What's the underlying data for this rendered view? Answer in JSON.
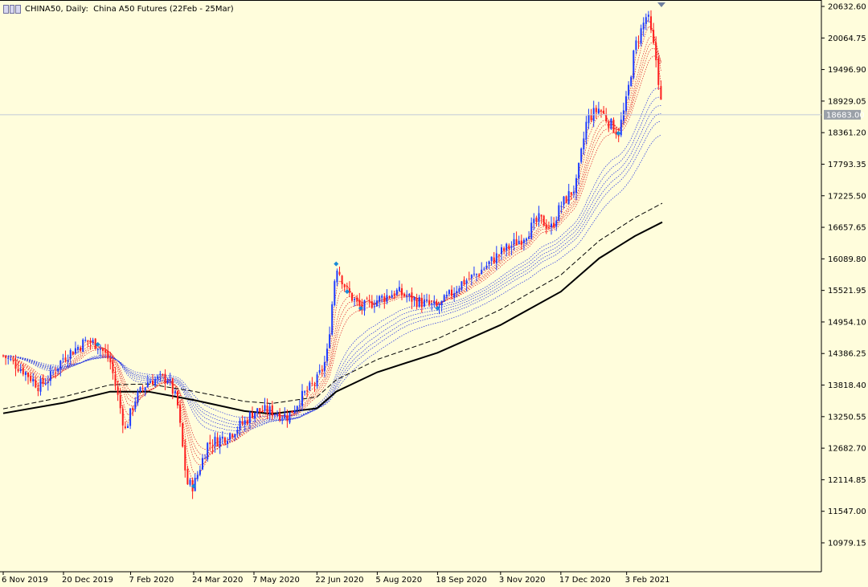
{
  "window": {
    "symbol": "CHINA50",
    "timeframe": "Daily",
    "separator": ":",
    "description": "China A50 Futures (22Feb - 25Mar)",
    "bid_badge": "18683.00"
  },
  "colors": {
    "background": "#fffddc",
    "bull_candle": "#1e3cff",
    "bear_candle": "#ff1e1e",
    "ema_fast": "#e02020",
    "ema_slow": "#2030e0",
    "long_ma": "#000000",
    "bid_line": "#c0c8d8"
  },
  "chart_data": {
    "type": "candlestick",
    "title": "CHINA50, Daily: China A50 Futures (22Feb - 25Mar)",
    "y_axis": {
      "ticks": [
        20632.6,
        20064.75,
        19496.9,
        18929.05,
        18361.2,
        17793.35,
        17225.5,
        16657.65,
        16089.8,
        15521.95,
        14954.1,
        14386.25,
        13818.4,
        13250.55,
        12682.7,
        12114.85,
        11547.0,
        10979.15
      ],
      "labels": [
        "20632.60",
        "20064.75",
        "19496.90",
        "18929.05",
        "18361.20",
        "17793.35",
        "17225.50",
        "16657.65",
        "16089.80",
        "15521.95",
        "14954.10",
        "14386.25",
        "13818.40",
        "13250.55",
        "12682.70",
        "12114.85",
        "11547.00",
        "10979.15"
      ],
      "range": [
        10750,
        20700
      ]
    },
    "x_axis": {
      "labels": [
        "6 Nov 2019",
        "20 Dec 2019",
        "7 Feb 2020",
        "24 Mar 2020",
        "7 May 2020",
        "22 Jun 2020",
        "5 Aug 2020",
        "18 Sep 2020",
        "3 Nov 2020",
        "17 Dec 2020",
        "3 Feb 2021"
      ]
    },
    "current_price": 18683.0,
    "close_path": [
      {
        "date": "2019-11-06",
        "close": 14350
      },
      {
        "date": "2019-11-20",
        "close": 14100
      },
      {
        "date": "2019-12-02",
        "close": 13800
      },
      {
        "date": "2019-12-10",
        "close": 13950
      },
      {
        "date": "2019-12-20",
        "close": 14320
      },
      {
        "date": "2020-01-06",
        "close": 14620
      },
      {
        "date": "2020-01-14",
        "close": 14550
      },
      {
        "date": "2020-01-23",
        "close": 14250
      },
      {
        "date": "2020-02-03",
        "close": 13000
      },
      {
        "date": "2020-02-10",
        "close": 13550
      },
      {
        "date": "2020-02-20",
        "close": 13900
      },
      {
        "date": "2020-03-05",
        "close": 13950
      },
      {
        "date": "2020-03-12",
        "close": 13500
      },
      {
        "date": "2020-03-19",
        "close": 12050
      },
      {
        "date": "2020-03-24",
        "close": 12000
      },
      {
        "date": "2020-04-03",
        "close": 12750
      },
      {
        "date": "2020-04-17",
        "close": 12900
      },
      {
        "date": "2020-04-30",
        "close": 13150
      },
      {
        "date": "2020-05-07",
        "close": 13350
      },
      {
        "date": "2020-05-20",
        "close": 13350
      },
      {
        "date": "2020-06-01",
        "close": 13250
      },
      {
        "date": "2020-06-09",
        "close": 13550
      },
      {
        "date": "2020-06-22",
        "close": 13900
      },
      {
        "date": "2020-06-29",
        "close": 14300
      },
      {
        "date": "2020-07-06",
        "close": 16000
      },
      {
        "date": "2020-07-14",
        "close": 15500
      },
      {
        "date": "2020-07-24",
        "close": 15200
      },
      {
        "date": "2020-08-05",
        "close": 15350
      },
      {
        "date": "2020-08-19",
        "close": 15500
      },
      {
        "date": "2020-09-01",
        "close": 15350
      },
      {
        "date": "2020-09-18",
        "close": 15200
      },
      {
        "date": "2020-10-05",
        "close": 15650
      },
      {
        "date": "2020-10-16",
        "close": 15800
      },
      {
        "date": "2020-11-03",
        "close": 16200
      },
      {
        "date": "2020-11-18",
        "close": 16450
      },
      {
        "date": "2020-12-01",
        "close": 16800
      },
      {
        "date": "2020-12-10",
        "close": 16650
      },
      {
        "date": "2020-12-17",
        "close": 17050
      },
      {
        "date": "2020-12-28",
        "close": 17400
      },
      {
        "date": "2021-01-05",
        "close": 18600
      },
      {
        "date": "2021-01-14",
        "close": 18800
      },
      {
        "date": "2021-01-21",
        "close": 18550
      },
      {
        "date": "2021-01-28",
        "close": 18350
      },
      {
        "date": "2021-02-03",
        "close": 18950
      },
      {
        "date": "2021-02-09",
        "close": 19900
      },
      {
        "date": "2021-02-18",
        "close": 20500
      },
      {
        "date": "2021-02-25",
        "close": 19600
      },
      {
        "date": "2021-03-01",
        "close": 18683
      }
    ],
    "long_ma": [
      {
        "date": "2019-11-06",
        "value": 13310
      },
      {
        "date": "2019-12-20",
        "value": 13500
      },
      {
        "date": "2020-01-23",
        "value": 13700
      },
      {
        "date": "2020-02-20",
        "value": 13700
      },
      {
        "date": "2020-03-24",
        "value": 13550
      },
      {
        "date": "2020-04-30",
        "value": 13350
      },
      {
        "date": "2020-05-20",
        "value": 13300
      },
      {
        "date": "2020-06-22",
        "value": 13400
      },
      {
        "date": "2020-07-06",
        "value": 13700
      },
      {
        "date": "2020-08-05",
        "value": 14050
      },
      {
        "date": "2020-09-18",
        "value": 14400
      },
      {
        "date": "2020-11-03",
        "value": 14900
      },
      {
        "date": "2020-12-17",
        "value": 15500
      },
      {
        "date": "2021-01-14",
        "value": 16100
      },
      {
        "date": "2021-02-09",
        "value": 16500
      },
      {
        "date": "2021-03-01",
        "value": 16750
      }
    ]
  }
}
